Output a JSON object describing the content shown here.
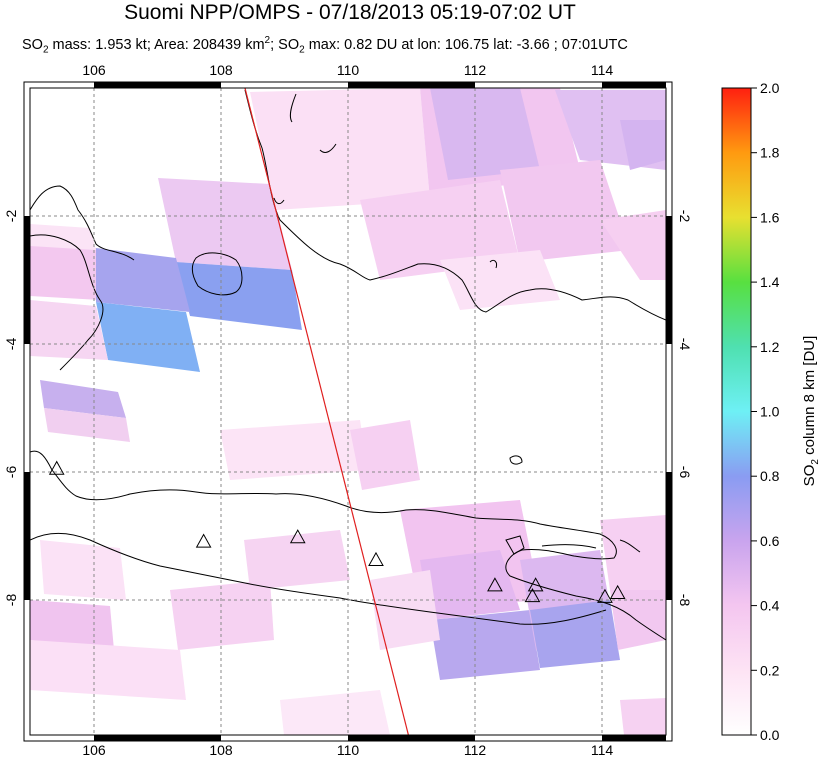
{
  "title": "Suomi NPP/OMPS - 07/18/2013 05:19-07:02 UT",
  "subtitle": {
    "so2_mass_label": "SO",
    "so2_mass_text": " mass: 1.953 kt; Area: 208439 km",
    "so2_max_label": "; SO",
    "so2_max_text": " max: 0.82 DU at lon: 106.75 lat: -3.66 ; 07:01UTC"
  },
  "map": {
    "lon_range": [
      105,
      115
    ],
    "lat_range": [
      -10.3,
      -0.1
    ],
    "lon_ticks": [
      "106",
      "108",
      "110",
      "112",
      "114"
    ],
    "lat_ticks": [
      "-2",
      "-4",
      "-6",
      "-8"
    ],
    "lat_ticks_right": [
      "-2",
      "-4",
      "-6",
      "-8"
    ],
    "volcanoes": [
      {
        "lon": 105.42,
        "lat": -6.1
      },
      {
        "lon": 107.73,
        "lat": -7.25
      },
      {
        "lon": 109.21,
        "lat": -7.18
      },
      {
        "lon": 110.44,
        "lat": -7.54
      },
      {
        "lon": 112.31,
        "lat": -7.94
      },
      {
        "lon": 112.95,
        "lat": -7.94
      },
      {
        "lon": 112.9,
        "lat": -8.11
      },
      {
        "lon": 114.04,
        "lat": -8.12
      },
      {
        "lon": 114.24,
        "lat": -8.06
      }
    ],
    "orbit_line": {
      "lon_start": 108.38,
      "lat_start": -0.1,
      "lon_end": 110.95,
      "lat_end": -10.3
    },
    "orbit_color": "#e02020"
  },
  "colorbar": {
    "label": "SO2 column 8 km [DU]",
    "label_prefix": "SO",
    "label_suffix": " column 8 km [DU]",
    "min": 0.0,
    "max": 2.0,
    "ticks": [
      "0.0",
      "0.2",
      "0.4",
      "0.6",
      "0.8",
      "1.0",
      "1.2",
      "1.4",
      "1.6",
      "1.8",
      "2.0"
    ]
  }
}
